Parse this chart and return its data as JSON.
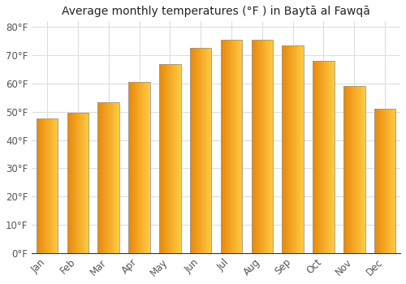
{
  "title": "Average monthly temperatures (°F ) in Baytā al Fawqā",
  "months": [
    "Jan",
    "Feb",
    "Mar",
    "Apr",
    "May",
    "Jun",
    "Jul",
    "Aug",
    "Sep",
    "Oct",
    "Nov",
    "Dec"
  ],
  "values": [
    47.5,
    49.5,
    53.5,
    60.5,
    67.0,
    72.5,
    75.5,
    75.5,
    73.5,
    68.0,
    59.0,
    51.0
  ],
  "bar_color_left": "#E8870A",
  "bar_color_right": "#FFCC44",
  "bar_edge_color": "#999999",
  "background_color": "#FFFFFF",
  "grid_color": "#DDDDDD",
  "yticks": [
    0,
    10,
    20,
    30,
    40,
    50,
    60,
    70,
    80
  ],
  "ylim": [
    0,
    82
  ],
  "title_fontsize": 10,
  "tick_fontsize": 8.5
}
